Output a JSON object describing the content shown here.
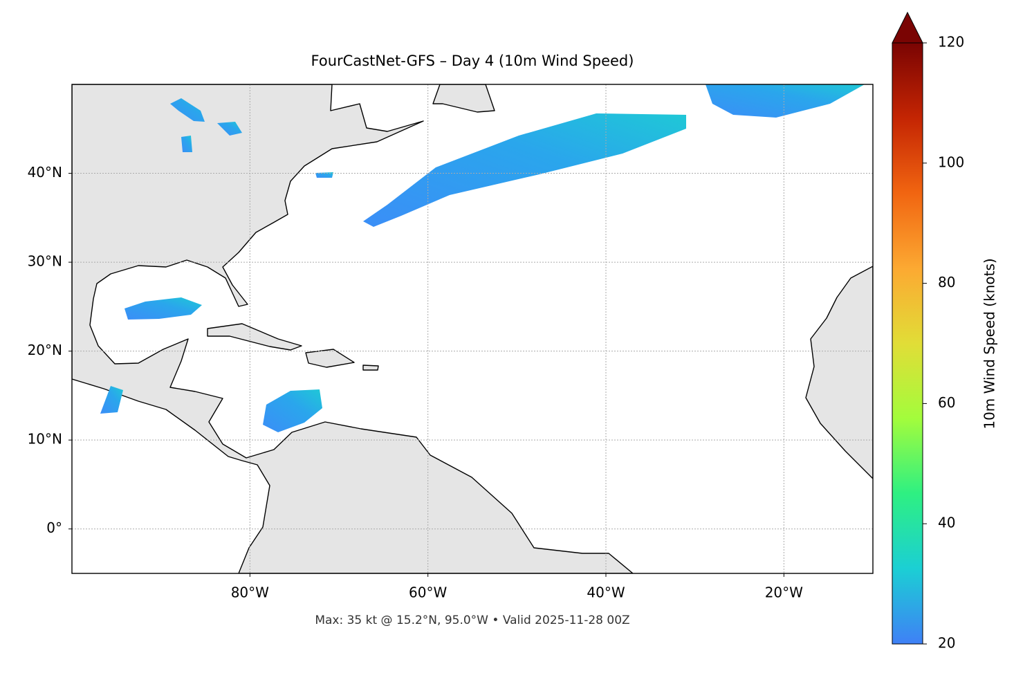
{
  "chart_data": {
    "type": "map",
    "title": "FourCastNet-GFS – Day 4 (10m Wind Speed)",
    "footer": "Max: 35 kt @ 15.2°N, 95.0°W • Valid 2025-11-28 00Z",
    "xlim": [
      -100,
      -10
    ],
    "ylim": [
      -5,
      50
    ],
    "xticks": [
      {
        "value": -80,
        "label": "80°W"
      },
      {
        "value": -60,
        "label": "60°W"
      },
      {
        "value": -40,
        "label": "40°W"
      },
      {
        "value": -20,
        "label": "20°W"
      }
    ],
    "yticks": [
      {
        "value": 0,
        "label": "0°"
      },
      {
        "value": 10,
        "label": "10°N"
      },
      {
        "value": 20,
        "label": "20°N"
      },
      {
        "value": 30,
        "label": "30°N"
      },
      {
        "value": 40,
        "label": "40°N"
      }
    ],
    "grid": true,
    "colorbar": {
      "label": "10m Wind Speed (knots)",
      "lim": [
        20,
        120
      ],
      "ticks": [
        20,
        40,
        60,
        80,
        100,
        120
      ],
      "colors": [
        "#3f80f6",
        "#1bcfd4",
        "#2ef082",
        "#a3fc3c",
        "#e1dd37",
        "#fca932",
        "#f16511",
        "#c42503",
        "#7a0403"
      ]
    }
  }
}
